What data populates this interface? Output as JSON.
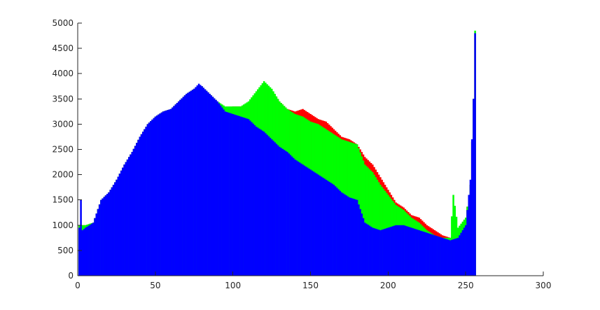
{
  "chart_data": {
    "type": "bar",
    "xlim": [
      0,
      300
    ],
    "ylim": [
      0,
      5000
    ],
    "xticks": [
      0,
      50,
      100,
      150,
      200,
      250,
      300
    ],
    "yticks": [
      0,
      500,
      1000,
      1500,
      2000,
      2500,
      3000,
      3500,
      4000,
      4500,
      5000
    ],
    "xtick_labels": [
      "0",
      "50",
      "100",
      "150",
      "200",
      "250",
      "300"
    ],
    "ytick_labels": [
      "0",
      "500",
      "1000",
      "1500",
      "2000",
      "2500",
      "3000",
      "3500",
      "4000",
      "4500",
      "5000"
    ],
    "grid": false,
    "legend": "none",
    "bin_start": 1,
    "bin_end": 256,
    "series": [
      {
        "color": "#ff0000",
        "points": [
          [
            1,
            1000
          ],
          [
            5,
            1000
          ],
          [
            10,
            1050
          ],
          [
            15,
            1500
          ],
          [
            20,
            1650
          ],
          [
            25,
            1900
          ],
          [
            30,
            2200
          ],
          [
            35,
            2450
          ],
          [
            40,
            2750
          ],
          [
            45,
            3000
          ],
          [
            50,
            3150
          ],
          [
            55,
            3250
          ],
          [
            60,
            3300
          ],
          [
            65,
            3450
          ],
          [
            70,
            3600
          ],
          [
            75,
            3700
          ],
          [
            80,
            3750
          ],
          [
            85,
            3600
          ],
          [
            90,
            3450
          ],
          [
            95,
            3300
          ],
          [
            100,
            3350
          ],
          [
            105,
            3350
          ],
          [
            110,
            3400
          ],
          [
            115,
            3550
          ],
          [
            120,
            3800
          ],
          [
            125,
            3650
          ],
          [
            130,
            3450
          ],
          [
            135,
            3300
          ],
          [
            140,
            3250
          ],
          [
            145,
            3300
          ],
          [
            150,
            3200
          ],
          [
            155,
            3100
          ],
          [
            160,
            3050
          ],
          [
            165,
            2900
          ],
          [
            170,
            2750
          ],
          [
            175,
            2700
          ],
          [
            180,
            2600
          ],
          [
            185,
            2350
          ],
          [
            190,
            2200
          ],
          [
            195,
            1950
          ],
          [
            200,
            1700
          ],
          [
            205,
            1450
          ],
          [
            210,
            1350
          ],
          [
            215,
            1200
          ],
          [
            220,
            1150
          ],
          [
            225,
            1000
          ],
          [
            230,
            900
          ],
          [
            235,
            800
          ],
          [
            240,
            750
          ],
          [
            245,
            850
          ],
          [
            250,
            1150
          ],
          [
            253,
            1800
          ],
          [
            255,
            3500
          ],
          [
            256,
            4800
          ]
        ]
      },
      {
        "color": "#00ff00",
        "points": [
          [
            1,
            1000
          ],
          [
            5,
            1000
          ],
          [
            10,
            1050
          ],
          [
            15,
            1500
          ],
          [
            20,
            1650
          ],
          [
            25,
            1900
          ],
          [
            30,
            2200
          ],
          [
            35,
            2450
          ],
          [
            40,
            2750
          ],
          [
            45,
            3000
          ],
          [
            50,
            3150
          ],
          [
            55,
            3250
          ],
          [
            60,
            3300
          ],
          [
            65,
            3450
          ],
          [
            70,
            3600
          ],
          [
            75,
            3700
          ],
          [
            80,
            3750
          ],
          [
            85,
            3600
          ],
          [
            90,
            3450
          ],
          [
            95,
            3350
          ],
          [
            100,
            3350
          ],
          [
            105,
            3350
          ],
          [
            110,
            3450
          ],
          [
            115,
            3650
          ],
          [
            120,
            3850
          ],
          [
            125,
            3700
          ],
          [
            130,
            3450
          ],
          [
            135,
            3300
          ],
          [
            140,
            3200
          ],
          [
            145,
            3150
          ],
          [
            150,
            3050
          ],
          [
            155,
            3000
          ],
          [
            160,
            2900
          ],
          [
            165,
            2800
          ],
          [
            170,
            2700
          ],
          [
            175,
            2650
          ],
          [
            180,
            2600
          ],
          [
            185,
            2200
          ],
          [
            190,
            2050
          ],
          [
            195,
            1800
          ],
          [
            200,
            1600
          ],
          [
            205,
            1400
          ],
          [
            210,
            1300
          ],
          [
            215,
            1150
          ],
          [
            220,
            1050
          ],
          [
            225,
            900
          ],
          [
            230,
            800
          ],
          [
            235,
            750
          ],
          [
            240,
            750
          ],
          [
            242,
            1600
          ],
          [
            245,
            950
          ],
          [
            250,
            1150
          ],
          [
            253,
            1800
          ],
          [
            255,
            3500
          ],
          [
            256,
            4850
          ]
        ]
      },
      {
        "color": "#0000ff",
        "points": [
          [
            1,
            950
          ],
          [
            2,
            1500
          ],
          [
            3,
            900
          ],
          [
            5,
            950
          ],
          [
            10,
            1050
          ],
          [
            15,
            1500
          ],
          [
            20,
            1650
          ],
          [
            25,
            1900
          ],
          [
            30,
            2200
          ],
          [
            35,
            2450
          ],
          [
            40,
            2750
          ],
          [
            45,
            3000
          ],
          [
            50,
            3150
          ],
          [
            55,
            3250
          ],
          [
            60,
            3300
          ],
          [
            65,
            3450
          ],
          [
            70,
            3600
          ],
          [
            75,
            3700
          ],
          [
            78,
            3800
          ],
          [
            80,
            3750
          ],
          [
            85,
            3600
          ],
          [
            90,
            3450
          ],
          [
            95,
            3250
          ],
          [
            100,
            3200
          ],
          [
            105,
            3150
          ],
          [
            110,
            3100
          ],
          [
            115,
            2950
          ],
          [
            120,
            2850
          ],
          [
            125,
            2700
          ],
          [
            130,
            2550
          ],
          [
            135,
            2450
          ],
          [
            140,
            2300
          ],
          [
            145,
            2200
          ],
          [
            150,
            2100
          ],
          [
            155,
            2000
          ],
          [
            160,
            1900
          ],
          [
            165,
            1800
          ],
          [
            170,
            1650
          ],
          [
            175,
            1550
          ],
          [
            180,
            1500
          ],
          [
            185,
            1050
          ],
          [
            190,
            950
          ],
          [
            195,
            900
          ],
          [
            200,
            950
          ],
          [
            205,
            1000
          ],
          [
            210,
            1000
          ],
          [
            215,
            950
          ],
          [
            220,
            900
          ],
          [
            225,
            850
          ],
          [
            230,
            800
          ],
          [
            235,
            750
          ],
          [
            240,
            700
          ],
          [
            245,
            750
          ],
          [
            250,
            1000
          ],
          [
            253,
            1900
          ],
          [
            255,
            3500
          ],
          [
            256,
            4800
          ]
        ]
      }
    ]
  }
}
